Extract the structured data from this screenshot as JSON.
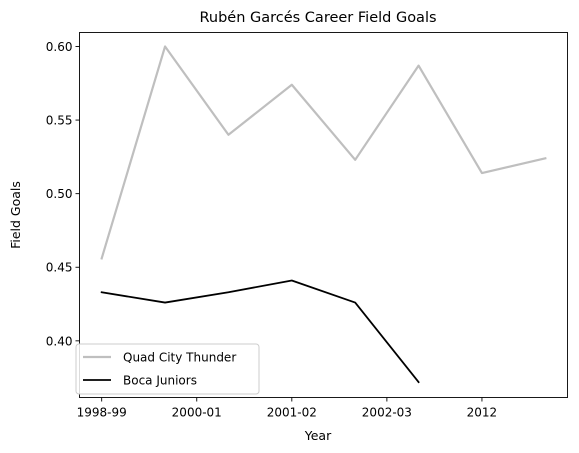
{
  "chart_data": {
    "type": "line",
    "title": "Rubén Garcés Career Field Goals",
    "xlabel": "Year",
    "ylabel": "Field Goals",
    "x": [
      0,
      1,
      2,
      3,
      4,
      5,
      6,
      7
    ],
    "xticks": [
      {
        "x": 0,
        "label": "1998-99"
      },
      {
        "x": 1.5,
        "label": "2000-01"
      },
      {
        "x": 3,
        "label": "2001-02"
      },
      {
        "x": 4.5,
        "label": "2002-03"
      },
      {
        "x": 6,
        "label": "2012"
      }
    ],
    "xlim": [
      -0.35,
      7.35
    ],
    "ylim": [
      0.3615,
      0.6095
    ],
    "yticks": [
      0.4,
      0.45,
      0.5,
      0.55,
      0.6
    ],
    "ytick_labels": [
      "0.40",
      "0.45",
      "0.50",
      "0.55",
      "0.60"
    ],
    "grid": false,
    "legend_position": "lower-left",
    "series": [
      {
        "name": "Quad City Thunder",
        "color": "#bfbfbf",
        "values": [
          0.456,
          0.6,
          0.54,
          0.574,
          0.523,
          0.587,
          0.514,
          0.524
        ]
      },
      {
        "name": "Boca Juniors",
        "color": "#000000",
        "values": [
          0.433,
          0.426,
          0.433,
          0.441,
          0.426,
          0.372,
          null,
          null
        ]
      }
    ]
  }
}
